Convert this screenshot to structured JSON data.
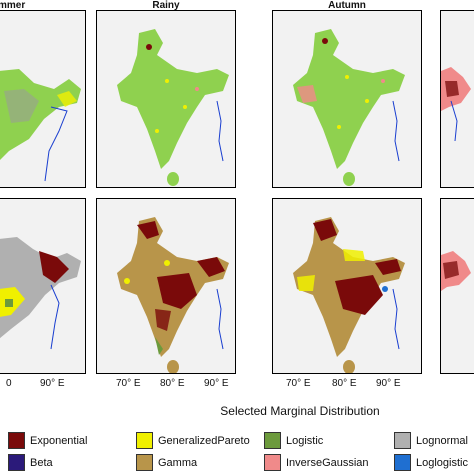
{
  "panel_titles": {
    "top_col1": "mmer",
    "top_col2": "Rainy",
    "top_col3": "Autumn"
  },
  "longitude_ticks": {
    "col1": [
      "0",
      "90° E"
    ],
    "col2": [
      "70° E",
      "80° E",
      "90° E"
    ],
    "col3": [
      "70° E",
      "80° E",
      "90° E"
    ]
  },
  "legend": {
    "title": "Selected Marginal Distribution",
    "items": [
      {
        "label": "Exponential",
        "color": "#7a0a0a"
      },
      {
        "label": "Beta",
        "color": "#2b1a7a"
      },
      {
        "label": "GeneralizedPareto",
        "color": "#f0f000"
      },
      {
        "label": "Gamma",
        "color": "#b8954a"
      },
      {
        "label": "Logistic",
        "color": "#6c9a3c"
      },
      {
        "label": "InverseGaussian",
        "color": "#f08a8a"
      },
      {
        "label": "Lognormal",
        "color": "#b0b0b0"
      },
      {
        "label": "Loglogistic",
        "color": "#1f6fd1"
      }
    ]
  },
  "colors": {
    "ocean": "#f2f2f2",
    "land_top": "#8fd14f",
    "land_bottom": "#b8954a",
    "river": "#1a3fd0"
  }
}
